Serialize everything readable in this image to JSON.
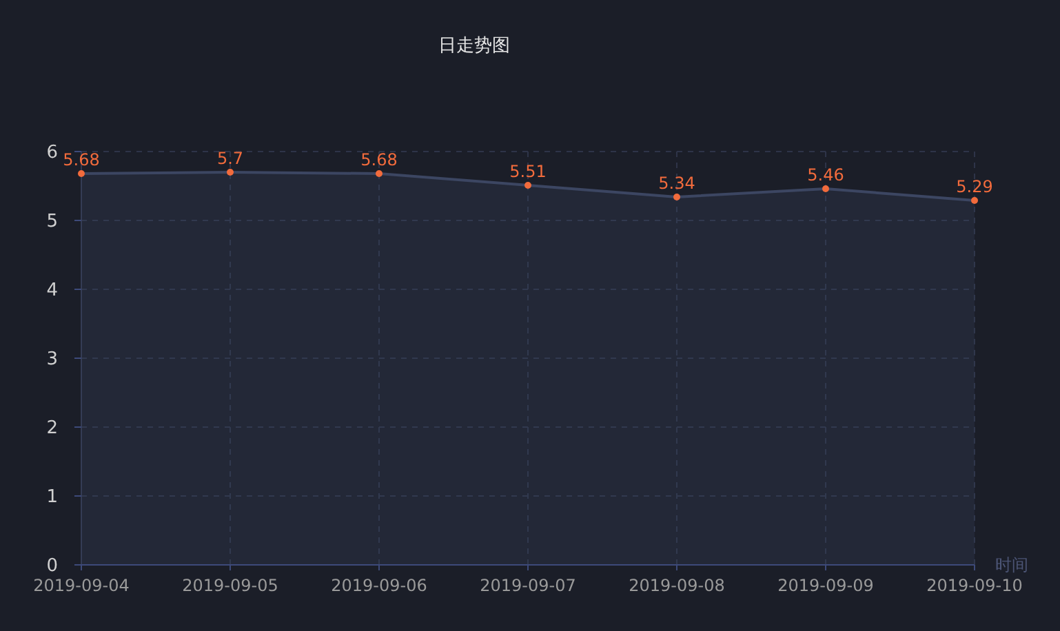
{
  "chart_data": {
    "type": "area",
    "title": "日走势图",
    "xlabel": "时间",
    "categories": [
      "2019-09-04",
      "2019-09-05",
      "2019-09-06",
      "2019-09-07",
      "2019-09-08",
      "2019-09-09",
      "2019-09-10"
    ],
    "series": [
      {
        "color": "#3c4662",
        "values": [
          5.68,
          5.7,
          5.68,
          5.51,
          5.34,
          5.46,
          5.29
        ]
      }
    ],
    "ylim": [
      0,
      6
    ],
    "yticks": [
      0,
      1,
      2,
      3,
      4,
      5,
      6
    ],
    "grid": true,
    "marker": "circle",
    "data_labels": true
  }
}
